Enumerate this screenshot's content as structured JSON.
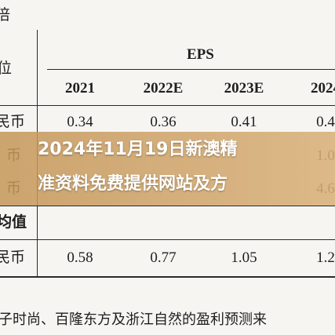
{
  "table": {
    "unit_fragment": "倍",
    "row_header_fragment": "位",
    "group_header": "EPS",
    "columns": [
      "2021",
      "2022E",
      "2023E",
      "2024"
    ],
    "rows": [
      {
        "label": "民币",
        "cells": [
          "0.34",
          "0.36",
          "0.41",
          "0.4"
        ]
      },
      {
        "label": "币",
        "cells": [
          null,
          null,
          null,
          "1.0"
        ]
      },
      {
        "label": "币",
        "cells": [
          null,
          null,
          null,
          "4.6"
        ]
      },
      {
        "label": "均值",
        "cells": [
          null,
          null,
          null,
          null
        ]
      },
      {
        "label": "民币",
        "cells": [
          "0.58",
          "0.77",
          "1.05",
          "1.2"
        ]
      }
    ]
  },
  "note": "子时尚、百隆东方及浙江自然的盈利预测来",
  "overlay": {
    "lines": [
      "2024年11月19日新澳精",
      "准资料免费提供网站及方"
    ]
  }
}
